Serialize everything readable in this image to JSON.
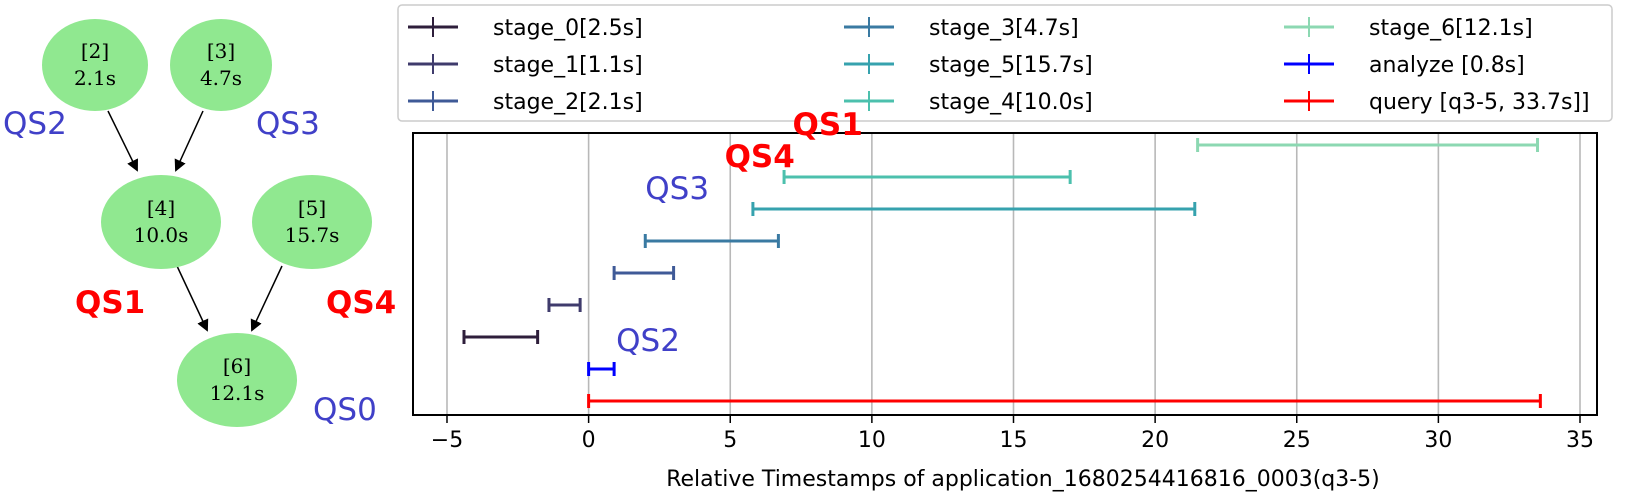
{
  "dag": {
    "nodes": [
      {
        "id": "[2]",
        "time": "2.1s"
      },
      {
        "id": "[3]",
        "time": "4.7s"
      },
      {
        "id": "[4]",
        "time": "10.0s"
      },
      {
        "id": "[5]",
        "time": "15.7s"
      },
      {
        "id": "[6]",
        "time": "12.1s"
      }
    ],
    "edges": [
      [
        "[2]",
        "[4]"
      ],
      [
        "[3]",
        "[4]"
      ],
      [
        "[4]",
        "[6]"
      ],
      [
        "[5]",
        "[6]"
      ]
    ],
    "node_color": "#90e890",
    "labels": [
      {
        "text": "QS2",
        "style": "blue"
      },
      {
        "text": "QS3",
        "style": "blue"
      },
      {
        "text": "QS1",
        "style": "red"
      },
      {
        "text": "QS4",
        "style": "red"
      },
      {
        "text": "QS0",
        "style": "blue"
      }
    ]
  },
  "chart_data": {
    "type": "timeline",
    "xlabel": "Relative Timestamps of application_1680254416816_0003(q3-5)",
    "xlim": [
      -6.2,
      35.6
    ],
    "xticks": [
      -5,
      0,
      5,
      10,
      15,
      20,
      25,
      30,
      35
    ],
    "xtick_labels": [
      "−5",
      "0",
      "5",
      "10",
      "15",
      "20",
      "25",
      "30",
      "35"
    ],
    "grid": "vertical",
    "legend_position": "top",
    "series": [
      {
        "name": "stage_0[2.5s]",
        "start": -4.4,
        "end": -1.8,
        "row": 2,
        "color": "#2e1e3b"
      },
      {
        "name": "stage_1[1.1s]",
        "start": -1.4,
        "end": -0.3,
        "row": 3,
        "color": "#3f3b6c"
      },
      {
        "name": "stage_2[2.1s]",
        "start": 0.9,
        "end": 3.0,
        "row": 4,
        "color": "#3f5a97"
      },
      {
        "name": "stage_3[4.7s]",
        "start": 2.0,
        "end": 6.7,
        "row": 5,
        "color": "#3a7aa2"
      },
      {
        "name": "stage_5[15.7s]",
        "start": 5.8,
        "end": 21.4,
        "row": 6,
        "color": "#36a2ae"
      },
      {
        "name": "stage_4[10.0s]",
        "start": 6.9,
        "end": 17.0,
        "row": 7,
        "color": "#4cc0ad"
      },
      {
        "name": "stage_6[12.1s]",
        "start": 21.5,
        "end": 33.5,
        "row": 8,
        "color": "#8cd8b2"
      },
      {
        "name": "analyze [0.8s]",
        "start": 0.0,
        "end": 0.9,
        "row": 1,
        "color": "#0000ff"
      },
      {
        "name": "query [q3-5, 33.7s]]",
        "start": 0.0,
        "end": 33.6,
        "row": 0,
        "color": "#ff0000"
      }
    ],
    "annotations": [
      {
        "text": "QS1",
        "x": 7.2,
        "row": 8,
        "style": "red"
      },
      {
        "text": "QS4",
        "x": 4.8,
        "row": 7,
        "style": "red"
      },
      {
        "text": "QS3",
        "x": 2.0,
        "row": 6,
        "style": "blue"
      },
      {
        "text": "QS2",
        "x": 0.9,
        "row": 3,
        "style": "blue"
      }
    ]
  }
}
